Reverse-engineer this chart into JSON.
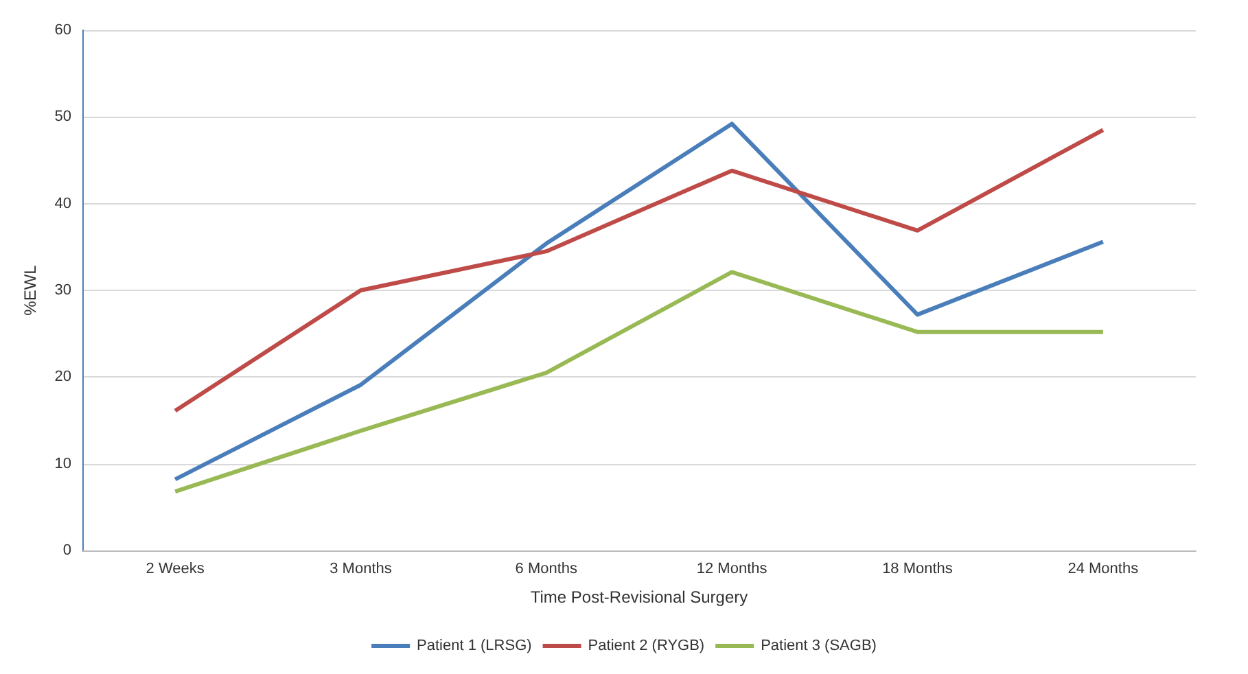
{
  "chart_data": {
    "type": "line",
    "xlabel": "Time Post-Revisional Surgery",
    "ylabel": "%EWL",
    "categories": [
      "2 Weeks",
      "3 Months",
      "6 Months",
      "12 Months",
      "18 Months",
      "24 Months"
    ],
    "series": [
      {
        "name": "Patient 1 (LRSG)",
        "color": "#4a7ebb",
        "values": [
          8.2,
          19.1,
          35.4,
          49.2,
          27.2,
          35.6
        ]
      },
      {
        "name": "Patient 2 (RYGB)",
        "color": "#be4b48",
        "values": [
          16.1,
          30,
          34.5,
          43.8,
          36.9,
          48.5
        ]
      },
      {
        "name": "Patient 3 (SAGB)",
        "color": "#98b954",
        "values": [
          6.8,
          13.8,
          20.5,
          32.1,
          25.2,
          25.2
        ]
      }
    ],
    "ylim": [
      0,
      60
    ],
    "yticks": [
      0,
      10,
      20,
      30,
      40,
      50,
      60
    ],
    "grid": "y",
    "legend": "bottom",
    "marker": "none",
    "line_style": "solid"
  }
}
